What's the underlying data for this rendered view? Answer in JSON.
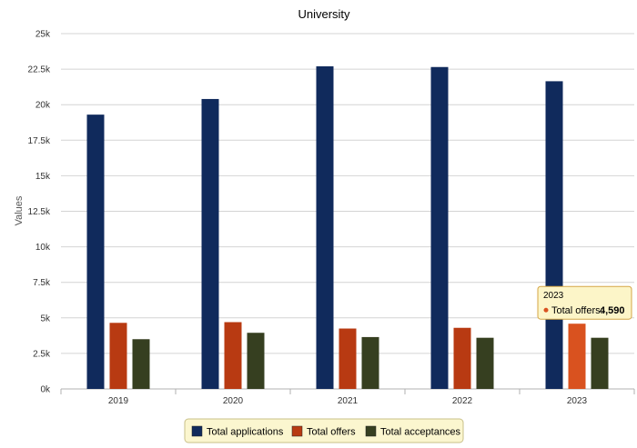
{
  "chart_data": {
    "type": "bar",
    "title": "University",
    "xlabel": "",
    "ylabel": "Values",
    "categories": [
      "2019",
      "2020",
      "2021",
      "2022",
      "2023"
    ],
    "series": [
      {
        "name": "Total applications",
        "color": "#102a5c",
        "values": [
          19300,
          20400,
          22700,
          22650,
          21650
        ]
      },
      {
        "name": "Total offers",
        "color": "#b83a12",
        "values": [
          4650,
          4700,
          4250,
          4300,
          4590
        ]
      },
      {
        "name": "Total acceptances",
        "color": "#363f20",
        "values": [
          3500,
          3950,
          3650,
          3600,
          3600
        ]
      }
    ],
    "ylim": [
      0,
      25000
    ],
    "yticks": [
      "0k",
      "2.5k",
      "5k",
      "7.5k",
      "10k",
      "12.5k",
      "15k",
      "17.5k",
      "20k",
      "22.5k",
      "25k"
    ],
    "grid": true,
    "legend_position": "bottom",
    "tooltip": {
      "category": "2023",
      "series_label": "Total offers:",
      "value_label": "4,590",
      "highlight_color": "#d9521f"
    }
  }
}
